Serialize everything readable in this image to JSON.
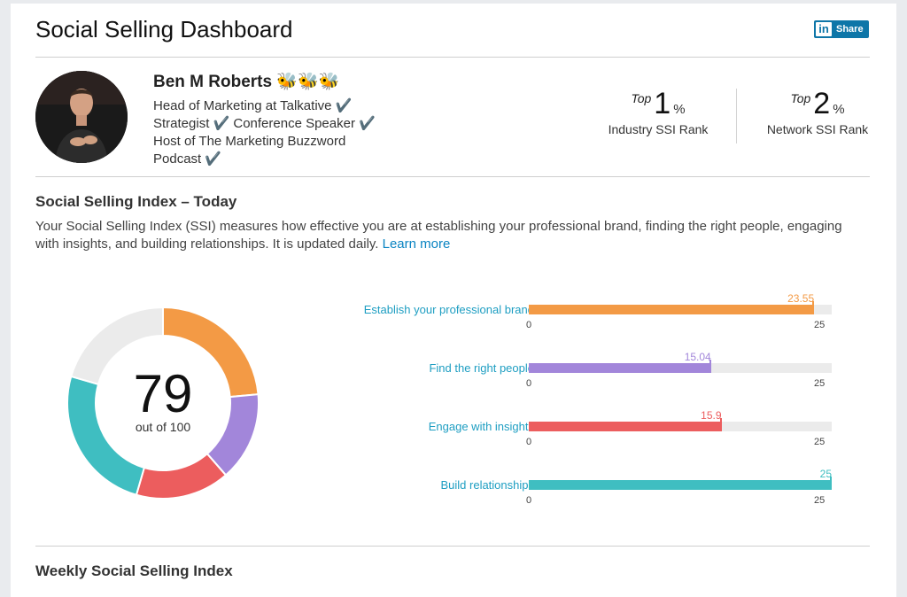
{
  "header": {
    "title": "Social Selling Dashboard",
    "share_logo": "in",
    "share_label": "Share"
  },
  "profile": {
    "name": "Ben M Roberts",
    "emoji": "🐝🐝🐝",
    "headline": "Head of Marketing at Talkative ✔️ Strategist ✔️ Conference Speaker ✔️ Host of The Marketing Buzzword Podcast ✔️"
  },
  "ranks": [
    {
      "top": "Top",
      "value": "1",
      "unit": "%",
      "label": "Industry SSI Rank"
    },
    {
      "top": "Top",
      "value": "2",
      "unit": "%",
      "label": "Network SSI Rank"
    }
  ],
  "ssi": {
    "title": "Social Selling Index – Today",
    "description": "Your Social Selling Index (SSI) measures how effective you are at establishing your professional brand, finding the right people, engaging with insights, and building relationships. It is updated daily.",
    "learn_more": "Learn more",
    "score": "79",
    "out_of": "out of 100"
  },
  "chart_data": {
    "type": "bar",
    "total": 79,
    "max_total": 100,
    "categories": [
      "Establish your professional brand",
      "Find the right people",
      "Engage with insights",
      "Build relationships"
    ],
    "values": [
      23.55,
      15.04,
      15.9,
      25
    ],
    "value_labels": [
      "23.55",
      "15.04",
      "15.9",
      "25"
    ],
    "xlim": [
      0,
      25
    ],
    "axis_min_label": "0",
    "axis_max_label": "25",
    "colors": [
      "#f39a45",
      "#a286da",
      "#ec5d5e",
      "#3fbec1"
    ],
    "track_color": "#ebebeb"
  },
  "weekly": {
    "title": "Weekly Social Selling Index"
  }
}
